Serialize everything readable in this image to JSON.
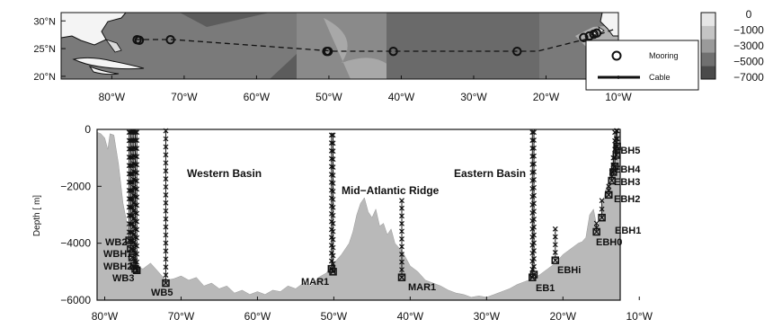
{
  "map_panel": {
    "y_axis": {
      "ticks": [
        {
          "value": 30,
          "label": "30°N"
        },
        {
          "value": 25,
          "label": "25°N"
        },
        {
          "value": 20,
          "label": "20°N"
        }
      ]
    },
    "x_axis": {
      "ticks": [
        {
          "value": -80,
          "label": "80°W"
        },
        {
          "value": -70,
          "label": "70°W"
        },
        {
          "value": -60,
          "label": "60°W"
        },
        {
          "value": -50,
          "label": "50°W"
        },
        {
          "value": -40,
          "label": "40°W"
        },
        {
          "value": -30,
          "label": "30°W"
        },
        {
          "value": -20,
          "label": "20°W"
        },
        {
          "value": -10,
          "label": "10°W"
        }
      ]
    },
    "colorbar": {
      "labels": [
        "0",
        "−1000",
        "−3000",
        "−5000",
        "−7000"
      ],
      "colors": [
        "#e6e6e6",
        "#c4c4c4",
        "#9a9a9a",
        "#707070",
        "#4a4a4a"
      ]
    },
    "legend": {
      "mooring_label": "Mooring",
      "cable_label": "Cable"
    },
    "moorings": [
      {
        "lon": -76.5,
        "lat": 26.6
      },
      {
        "lon": -76.2,
        "lat": 26.5
      },
      {
        "lon": -71.9,
        "lat": 26.6
      },
      {
        "lon": -50.3,
        "lat": 24.5
      },
      {
        "lon": -50.1,
        "lat": 24.5
      },
      {
        "lon": -41.1,
        "lat": 24.5
      },
      {
        "lon": -24.0,
        "lat": 24.5
      },
      {
        "lon": -14.8,
        "lat": 27.0
      },
      {
        "lon": -14.0,
        "lat": 27.3
      },
      {
        "lon": -13.4,
        "lat": 27.6
      },
      {
        "lon": -13.0,
        "lat": 27.8
      }
    ]
  },
  "section_panel": {
    "y_axis": {
      "label": "Depth [ m]",
      "ticks": [
        {
          "value": 0,
          "label": "0"
        },
        {
          "value": -2000,
          "label": "−2000"
        },
        {
          "value": -4000,
          "label": "−4000"
        },
        {
          "value": -6000,
          "label": "−6000"
        }
      ]
    },
    "x_axis": {
      "ticks": [
        {
          "value": -80,
          "label": "80°W"
        },
        {
          "value": -70,
          "label": "70°W"
        },
        {
          "value": -60,
          "label": "60°W"
        },
        {
          "value": -50,
          "label": "50°W"
        },
        {
          "value": -40,
          "label": "40°W"
        },
        {
          "value": -30,
          "label": "30°W"
        },
        {
          "value": -20,
          "label": "20°W"
        },
        {
          "value": -10,
          "label": "10°W"
        }
      ]
    },
    "region_labels": [
      "Western Basin",
      "Mid−Atlantic Ridge",
      "Eastern Basin"
    ],
    "mooring_labels": [
      "WB2",
      "WBH1",
      "WBH2",
      "WB3",
      "WB5",
      "MAR1",
      "MAR1",
      "EB1",
      "EBHi",
      "EBH0",
      "EBH1",
      "EBH2",
      "EBH3",
      "EBH4",
      "EBH5"
    ],
    "moorings": [
      {
        "lon": -76.8,
        "top": -100,
        "bottom": -3900
      },
      {
        "lon": -76.6,
        "top": -100,
        "bottom": -4200
      },
      {
        "lon": -76.4,
        "top": -100,
        "bottom": -4500
      },
      {
        "lon": -76.2,
        "top": -100,
        "bottom": -4800
      },
      {
        "lon": -76.0,
        "top": -100,
        "bottom": -4900
      },
      {
        "lon": -75.8,
        "top": -100,
        "bottom": -4950
      },
      {
        "lon": -72.0,
        "top": -50,
        "bottom": -5400
      },
      {
        "lon": -50.3,
        "top": -200,
        "bottom": -4900
      },
      {
        "lon": -50.1,
        "top": -200,
        "bottom": -5000
      },
      {
        "lon": -41.1,
        "top": -2500,
        "bottom": -5200
      },
      {
        "lon": -24.0,
        "top": -100,
        "bottom": -5200
      },
      {
        "lon": -23.8,
        "top": -100,
        "bottom": -5100
      },
      {
        "lon": -21.0,
        "top": -3500,
        "bottom": -4600
      },
      {
        "lon": -15.6,
        "top": -3300,
        "bottom": -3600
      },
      {
        "lon": -14.9,
        "top": -2500,
        "bottom": -3100
      },
      {
        "lon": -14.0,
        "top": -2000,
        "bottom": -2300
      },
      {
        "lon": -13.6,
        "top": -1500,
        "bottom": -1800
      },
      {
        "lon": -13.4,
        "top": -1000,
        "bottom": -1500
      },
      {
        "lon": -13.2,
        "top": -100,
        "bottom": -1300
      },
      {
        "lon": -13.0,
        "top": -50,
        "bottom": -900
      },
      {
        "lon": -12.9,
        "top": -50,
        "bottom": -600
      }
    ],
    "bathymetry": [
      [
        -81,
        -100
      ],
      [
        -80.5,
        -150
      ],
      [
        -80,
        -300
      ],
      [
        -79.6,
        -700
      ],
      [
        -79.3,
        -150
      ],
      [
        -78.8,
        -200
      ],
      [
        -78.2,
        -1200
      ],
      [
        -77.6,
        -2600
      ],
      [
        -77.0,
        -3400
      ],
      [
        -76.5,
        -4300
      ],
      [
        -76.0,
        -4800
      ],
      [
        -75.0,
        -4900
      ],
      [
        -74.0,
        -4700
      ],
      [
        -73.0,
        -5000
      ],
      [
        -72.0,
        -5300
      ],
      [
        -71.0,
        -5250
      ],
      [
        -70.0,
        -5150
      ],
      [
        -69.0,
        -5300
      ],
      [
        -68.0,
        -5200
      ],
      [
        -67.0,
        -5500
      ],
      [
        -66.0,
        -5400
      ],
      [
        -65.0,
        -5600
      ],
      [
        -64.0,
        -5500
      ],
      [
        -63.0,
        -5750
      ],
      [
        -62.0,
        -5650
      ],
      [
        -61.0,
        -5800
      ],
      [
        -60.0,
        -5700
      ],
      [
        -59.0,
        -5800
      ],
      [
        -58.0,
        -5650
      ],
      [
        -57.0,
        -5700
      ],
      [
        -56.0,
        -5500
      ],
      [
        -55.0,
        -5600
      ],
      [
        -54.0,
        -5400
      ],
      [
        -53.0,
        -5500
      ],
      [
        -52.0,
        -5200
      ],
      [
        -51.0,
        -5050
      ],
      [
        -50.0,
        -4700
      ],
      [
        -49.0,
        -4400
      ],
      [
        -48.0,
        -4000
      ],
      [
        -47.5,
        -3600
      ],
      [
        -47.0,
        -3000
      ],
      [
        -46.5,
        -2600
      ],
      [
        -46.0,
        -2400
      ],
      [
        -45.5,
        -2900
      ],
      [
        -45.0,
        -3100
      ],
      [
        -44.5,
        -2800
      ],
      [
        -44.0,
        -3400
      ],
      [
        -43.5,
        -3300
      ],
      [
        -43.0,
        -3700
      ],
      [
        -42.5,
        -3500
      ],
      [
        -42.0,
        -4000
      ],
      [
        -41.0,
        -4300
      ],
      [
        -40.0,
        -4800
      ],
      [
        -39.0,
        -5000
      ],
      [
        -38.0,
        -5300
      ],
      [
        -37.0,
        -5400
      ],
      [
        -36.0,
        -5500
      ],
      [
        -35.0,
        -5650
      ],
      [
        -34.0,
        -5750
      ],
      [
        -33.0,
        -5800
      ],
      [
        -32.0,
        -5900
      ],
      [
        -31.0,
        -5850
      ],
      [
        -30.0,
        -5900
      ],
      [
        -29.0,
        -5800
      ],
      [
        -28.0,
        -5700
      ],
      [
        -27.0,
        -5600
      ],
      [
        -26.0,
        -5450
      ],
      [
        -25.0,
        -5350
      ],
      [
        -24.0,
        -5250
      ],
      [
        -23.0,
        -5100
      ],
      [
        -22.0,
        -4900
      ],
      [
        -21.0,
        -4700
      ],
      [
        -20.0,
        -4400
      ],
      [
        -19.0,
        -4200
      ],
      [
        -18.0,
        -4000
      ],
      [
        -17.5,
        -3950
      ],
      [
        -17.0,
        -3800
      ],
      [
        -16.5,
        -3000
      ],
      [
        -16.0,
        -2800
      ],
      [
        -15.5,
        -3500
      ],
      [
        -15.0,
        -3000
      ],
      [
        -14.5,
        -2200
      ],
      [
        -14.0,
        -1800
      ],
      [
        -13.5,
        -1200
      ],
      [
        -13.0,
        -600
      ],
      [
        -12.6,
        -100
      ],
      [
        -12.5,
        0
      ]
    ]
  }
}
